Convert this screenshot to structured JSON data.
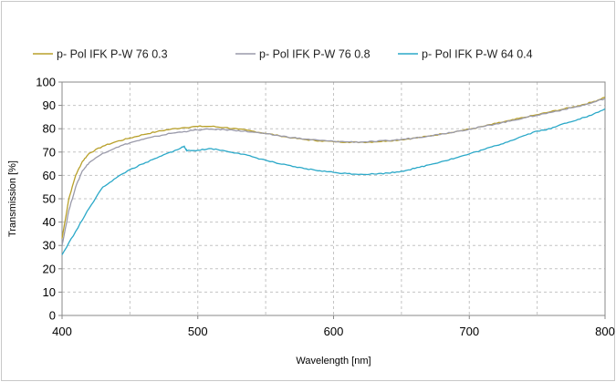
{
  "chart_data": {
    "type": "line",
    "title": "",
    "xlabel": "Wavelength [nm]",
    "ylabel": "Transmission [%]",
    "xlim": [
      400,
      800
    ],
    "ylim": [
      0,
      100
    ],
    "x_ticks": [
      400,
      500,
      600,
      700,
      800
    ],
    "y_ticks": [
      0,
      10,
      20,
      30,
      40,
      50,
      60,
      70,
      80,
      90,
      100
    ],
    "grid": true,
    "grid_style": "dashed",
    "x_minor_grid_step": 50,
    "legend_position": "top",
    "series": [
      {
        "name": "p- Pol IFK P-W 76 0.3",
        "color": "#b8a02a",
        "points": [
          [
            400,
            33
          ],
          [
            405,
            50
          ],
          [
            410,
            60
          ],
          [
            415,
            66
          ],
          [
            420,
            69.5
          ],
          [
            430,
            72.5
          ],
          [
            440,
            74.5
          ],
          [
            450,
            76
          ],
          [
            460,
            77.5
          ],
          [
            470,
            78.8
          ],
          [
            480,
            79.8
          ],
          [
            490,
            80.5
          ],
          [
            500,
            81
          ],
          [
            510,
            81
          ],
          [
            520,
            80.5
          ],
          [
            530,
            79.8
          ],
          [
            540,
            79
          ],
          [
            550,
            78
          ],
          [
            560,
            77
          ],
          [
            570,
            76
          ],
          [
            580,
            75.3
          ],
          [
            590,
            74.8
          ],
          [
            600,
            74.5
          ],
          [
            610,
            74.3
          ],
          [
            620,
            74.2
          ],
          [
            630,
            74.4
          ],
          [
            640,
            74.8
          ],
          [
            650,
            75.3
          ],
          [
            660,
            76
          ],
          [
            670,
            76.8
          ],
          [
            680,
            77.8
          ],
          [
            690,
            78.8
          ],
          [
            700,
            79.8
          ],
          [
            710,
            81
          ],
          [
            720,
            82.3
          ],
          [
            730,
            83.5
          ],
          [
            740,
            84.8
          ],
          [
            750,
            86
          ],
          [
            760,
            87.3
          ],
          [
            770,
            88.5
          ],
          [
            780,
            89.8
          ],
          [
            790,
            91.3
          ],
          [
            800,
            93.5
          ]
        ]
      },
      {
        "name": "p- Pol  IFK P-W 76 0.8",
        "color": "#9a9aaa",
        "points": [
          [
            400,
            30
          ],
          [
            405,
            45
          ],
          [
            410,
            55
          ],
          [
            415,
            62
          ],
          [
            420,
            65.5
          ],
          [
            430,
            69.5
          ],
          [
            440,
            72
          ],
          [
            450,
            74
          ],
          [
            460,
            75.5
          ],
          [
            470,
            76.8
          ],
          [
            480,
            78
          ],
          [
            490,
            78.8
          ],
          [
            500,
            79.5
          ],
          [
            510,
            79.8
          ],
          [
            520,
            79.6
          ],
          [
            530,
            79.2
          ],
          [
            540,
            78.6
          ],
          [
            550,
            77.8
          ],
          [
            560,
            77
          ],
          [
            570,
            76.2
          ],
          [
            580,
            75.5
          ],
          [
            590,
            75
          ],
          [
            600,
            74.6
          ],
          [
            610,
            74.4
          ],
          [
            620,
            74.3
          ],
          [
            630,
            74.5
          ],
          [
            640,
            74.9
          ],
          [
            650,
            75.4
          ],
          [
            660,
            76.1
          ],
          [
            670,
            76.9
          ],
          [
            680,
            77.8
          ],
          [
            690,
            78.8
          ],
          [
            700,
            79.8
          ],
          [
            710,
            80.9
          ],
          [
            720,
            82.1
          ],
          [
            730,
            83.3
          ],
          [
            740,
            84.6
          ],
          [
            750,
            85.8
          ],
          [
            760,
            87
          ],
          [
            770,
            88.3
          ],
          [
            780,
            89.5
          ],
          [
            790,
            91
          ],
          [
            800,
            93
          ]
        ]
      },
      {
        "name": "p- Pol IFK P-W 64 0.4",
        "color": "#2aa8c8",
        "points": [
          [
            400,
            26
          ],
          [
            410,
            36
          ],
          [
            420,
            46
          ],
          [
            430,
            55
          ],
          [
            440,
            59
          ],
          [
            450,
            62.5
          ],
          [
            460,
            65
          ],
          [
            470,
            67.5
          ],
          [
            480,
            70
          ],
          [
            485,
            71
          ],
          [
            490,
            72.5
          ],
          [
            492,
            70.5
          ],
          [
            500,
            70.8
          ],
          [
            510,
            71.5
          ],
          [
            520,
            70.5
          ],
          [
            530,
            69.5
          ],
          [
            540,
            68
          ],
          [
            550,
            66.5
          ],
          [
            560,
            65
          ],
          [
            570,
            63.8
          ],
          [
            580,
            62.8
          ],
          [
            590,
            62
          ],
          [
            600,
            61.3
          ],
          [
            610,
            60.8
          ],
          [
            620,
            60.5
          ],
          [
            630,
            60.6
          ],
          [
            640,
            61
          ],
          [
            650,
            61.8
          ],
          [
            660,
            63
          ],
          [
            670,
            64.5
          ],
          [
            680,
            66
          ],
          [
            690,
            67.5
          ],
          [
            700,
            69.2
          ],
          [
            710,
            71
          ],
          [
            720,
            72.8
          ],
          [
            730,
            74.8
          ],
          [
            740,
            77
          ],
          [
            750,
            79
          ],
          [
            760,
            80
          ],
          [
            770,
            82.3
          ],
          [
            780,
            84
          ],
          [
            790,
            85.8
          ],
          [
            800,
            88.5
          ]
        ]
      }
    ]
  }
}
